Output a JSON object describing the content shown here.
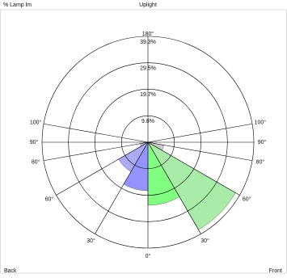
{
  "chart_data": {
    "type": "polar",
    "title": "Uplight",
    "axis_label": "% Lamp lm",
    "rlim": [
      0,
      39.3
    ],
    "rticks": [
      {
        "value": 9.8,
        "label": "9.8%"
      },
      {
        "value": 19.7,
        "label": "19.7%"
      },
      {
        "value": 29.5,
        "label": "29.5%"
      },
      {
        "value": 39.3,
        "label": "39.3%"
      }
    ],
    "angle_ticks": [
      {
        "value": 0,
        "label": "0°"
      },
      {
        "value": 30,
        "label": "30°"
      },
      {
        "value": 60,
        "label": "60°"
      },
      {
        "value": 80,
        "label": "80°"
      },
      {
        "value": 90,
        "label": "90°"
      },
      {
        "value": 100,
        "label": "100°"
      },
      {
        "value": 180,
        "label": "180°"
      }
    ],
    "zone_edges": [
      0,
      30,
      60,
      80
    ],
    "series": [
      {
        "name": "Front",
        "side": "right",
        "colors": [
          "#80ff80",
          "#a8eca8",
          "#c8c8c8"
        ],
        "values": [
          23.4,
          37.5,
          6
        ]
      },
      {
        "name": "Back",
        "side": "left",
        "colors": [
          "#9494ff",
          "#aaaaf5",
          "#c0c0d8"
        ],
        "values": [
          18,
          12.6,
          3
        ]
      }
    ]
  }
}
